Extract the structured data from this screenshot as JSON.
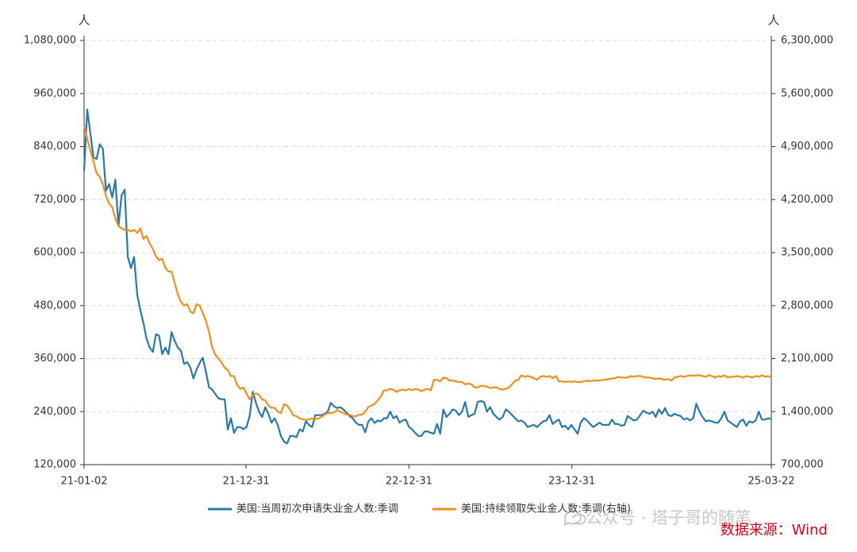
{
  "chart_data": {
    "type": "line",
    "y_unit": "人",
    "y2_unit": "人",
    "x": [
      "21-01-02",
      "21-01-09",
      "21-01-16",
      "21-01-23",
      "21-01-30",
      "21-02-06",
      "21-02-13",
      "21-02-20",
      "21-02-27",
      "21-03-06",
      "21-03-13",
      "21-03-20",
      "21-03-27",
      "21-04-03",
      "21-04-10",
      "21-04-17",
      "21-04-24",
      "21-05-01",
      "21-05-08",
      "21-05-15",
      "21-05-22",
      "21-05-29",
      "21-06-05",
      "21-06-12",
      "21-06-19",
      "21-06-26",
      "21-07-03",
      "21-07-10",
      "21-07-17",
      "21-07-24",
      "21-07-31",
      "21-08-07",
      "21-08-14",
      "21-08-21",
      "21-08-28",
      "21-09-04",
      "21-09-11",
      "21-09-18",
      "21-09-25",
      "21-10-02",
      "21-10-09",
      "21-10-16",
      "21-10-23",
      "21-10-30",
      "21-11-06",
      "21-11-13",
      "21-11-20",
      "21-11-27",
      "21-12-04",
      "21-12-11",
      "21-12-18",
      "21-12-25",
      "22-01-01",
      "22-01-08",
      "22-01-15",
      "22-01-22",
      "22-01-29",
      "22-02-05",
      "22-02-12",
      "22-02-19",
      "22-02-26",
      "22-03-05",
      "22-03-12",
      "22-03-19",
      "22-03-26",
      "22-04-02",
      "22-04-09",
      "22-04-16",
      "22-04-23",
      "22-04-30",
      "22-05-07",
      "22-05-14",
      "22-05-21",
      "22-05-28",
      "22-06-04",
      "22-06-11",
      "22-06-18",
      "22-06-25",
      "22-07-02",
      "22-07-09",
      "22-07-16",
      "22-07-23",
      "22-07-30",
      "22-08-06",
      "22-08-13",
      "22-08-20",
      "22-08-27",
      "22-09-03",
      "22-09-10",
      "22-09-17",
      "22-09-24",
      "22-10-01",
      "22-10-08",
      "22-10-15",
      "22-10-22",
      "22-10-29",
      "22-11-05",
      "22-11-12",
      "22-11-19",
      "22-11-26",
      "22-12-03",
      "22-12-10",
      "22-12-17",
      "22-12-24",
      "22-12-31",
      "23-01-07",
      "23-01-14",
      "23-01-21",
      "23-01-28",
      "23-02-04",
      "23-02-11",
      "23-02-18",
      "23-02-25",
      "23-03-04",
      "23-03-11",
      "23-03-18",
      "23-03-25",
      "23-04-01",
      "23-04-08",
      "23-04-15",
      "23-04-22",
      "23-04-29",
      "23-05-06",
      "23-05-13",
      "23-05-20",
      "23-05-27",
      "23-06-03",
      "23-06-10",
      "23-06-17",
      "23-06-24",
      "23-07-01",
      "23-07-08",
      "23-07-15",
      "23-07-22",
      "23-07-29",
      "23-08-05",
      "23-08-12",
      "23-08-19",
      "23-08-26",
      "23-09-02",
      "23-09-09",
      "23-09-16",
      "23-09-23",
      "23-09-30",
      "23-10-07",
      "23-10-14",
      "23-10-21",
      "23-10-28",
      "23-11-04",
      "23-11-11",
      "23-11-18",
      "23-11-25",
      "23-12-02",
      "23-12-09",
      "23-12-16",
      "23-12-23",
      "23-12-30",
      "24-01-06",
      "24-01-13",
      "24-01-20",
      "24-01-27",
      "24-02-03",
      "24-02-10",
      "24-02-17",
      "24-02-24",
      "24-03-02",
      "24-03-09",
      "24-03-16",
      "24-03-23",
      "24-03-30",
      "24-04-06",
      "24-04-13",
      "24-04-20",
      "24-04-27",
      "24-05-04",
      "24-05-11",
      "24-05-18",
      "24-05-25",
      "24-06-01",
      "24-06-08",
      "24-06-15",
      "24-06-22",
      "24-06-29",
      "24-07-06",
      "24-07-13",
      "24-07-20",
      "24-07-27",
      "24-08-03",
      "24-08-10",
      "24-08-17",
      "24-08-24",
      "24-08-31",
      "24-09-07",
      "24-09-14",
      "24-09-21",
      "24-09-28",
      "24-10-05",
      "24-10-12",
      "24-10-19",
      "24-10-26",
      "24-11-02",
      "24-11-09",
      "24-11-16",
      "24-11-23",
      "24-11-30",
      "24-12-07",
      "24-12-14",
      "24-12-21",
      "24-12-28",
      "25-01-04",
      "25-01-11",
      "25-01-18",
      "25-01-25",
      "25-02-01",
      "25-02-08",
      "25-02-15",
      "25-02-22",
      "25-03-01",
      "25-03-08",
      "25-03-15",
      "25-03-22"
    ],
    "series": [
      {
        "name": "美国:当周初次申请失业金人数:季调",
        "color": "#2878a8",
        "values": [
          785000,
          924000,
          870000,
          815000,
          812000,
          845000,
          835000,
          740000,
          755000,
          725000,
          765000,
          660000,
          730000,
          742000,
          590000,
          565000,
          590000,
          505000,
          470000,
          440000,
          405000,
          385000,
          375000,
          415000,
          412000,
          370000,
          385000,
          370000,
          420000,
          400000,
          385000,
          378000,
          348000,
          352000,
          340000,
          315000,
          335000,
          350000,
          362000,
          330000,
          295000,
          290000,
          280000,
          270000,
          268000,
          268000,
          199000,
          225000,
          192000,
          205000,
          205000,
          200000,
          205000,
          230000,
          285000,
          260000,
          240000,
          228000,
          250000,
          235000,
          215000,
          225000,
          210000,
          185000,
          172000,
          168000,
          185000,
          185000,
          182000,
          200000,
          195000,
          218000,
          210000,
          205000,
          232000,
          232000,
          232000,
          235000,
          240000,
          260000,
          252000,
          248000,
          250000,
          245000,
          238000,
          230000,
          225000,
          215000,
          210000,
          210000,
          193000,
          218000,
          225000,
          214000,
          220000,
          218000,
          225000,
          225000,
          240000,
          225000,
          230000,
          215000,
          220000,
          222000,
          205000,
          200000,
          192000,
          185000,
          185000,
          195000,
          195000,
          192000,
          190000,
          212000,
          190000,
          245000,
          228000,
          235000,
          245000,
          242000,
          232000,
          240000,
          262000,
          228000,
          232000,
          235000,
          262000,
          264000,
          262000,
          240000,
          250000,
          235000,
          228000,
          222000,
          228000,
          245000,
          240000,
          232000,
          225000,
          218000,
          220000,
          215000,
          205000,
          208000,
          210000,
          205000,
          212000,
          218000,
          220000,
          232000,
          212000,
          218000,
          222000,
          205000,
          208000,
          200000,
          210000,
          200000,
          190000,
          215000,
          225000,
          220000,
          212000,
          205000,
          210000,
          215000,
          210000,
          210000,
          210000,
          222000,
          212000,
          212000,
          208000,
          210000,
          230000,
          225000,
          220000,
          222000,
          232000,
          242000,
          238000,
          235000,
          240000,
          228000,
          245000,
          235000,
          248000,
          232000,
          230000,
          235000,
          232000,
          230000,
          222000,
          225000,
          220000,
          225000,
          258000,
          240000,
          228000,
          218000,
          220000,
          218000,
          215000,
          215000,
          225000,
          240000,
          220000,
          215000,
          210000,
          205000,
          218000,
          222000,
          208000,
          218000,
          215000,
          220000,
          240000,
          222000,
          222000,
          225000,
          223000
        ]
      },
      {
        "name": "美国:持续领取失业金人数:季调(右轴)",
        "color": "#f28e1e",
        "axis": "y2",
        "values": [
          5180000,
          5000000,
          4850000,
          4700000,
          4550000,
          4500000,
          4400000,
          4250000,
          4150000,
          4100000,
          3950000,
          3850000,
          3820000,
          3800000,
          3800000,
          3780000,
          3800000,
          3760000,
          3820000,
          3680000,
          3720000,
          3620000,
          3550000,
          3450000,
          3400000,
          3420000,
          3300000,
          3250000,
          3250000,
          3100000,
          2950000,
          2850000,
          2800000,
          2820000,
          2720000,
          2700000,
          2820000,
          2800000,
          2700000,
          2600000,
          2450000,
          2250000,
          2150000,
          2100000,
          2050000,
          1980000,
          1950000,
          1870000,
          1870000,
          1750000,
          1700000,
          1720000,
          1640000,
          1560000,
          1620000,
          1640000,
          1620000,
          1560000,
          1550000,
          1480000,
          1450000,
          1450000,
          1400000,
          1380000,
          1500000,
          1480000,
          1420000,
          1350000,
          1340000,
          1310000,
          1300000,
          1290000,
          1300000,
          1310000,
          1300000,
          1310000,
          1330000,
          1360000,
          1380000,
          1380000,
          1390000,
          1420000,
          1400000,
          1380000,
          1360000,
          1360000,
          1340000,
          1340000,
          1360000,
          1360000,
          1400000,
          1460000,
          1480000,
          1500000,
          1550000,
          1600000,
          1680000,
          1680000,
          1700000,
          1690000,
          1660000,
          1680000,
          1690000,
          1680000,
          1700000,
          1680000,
          1700000,
          1690000,
          1670000,
          1690000,
          1700000,
          1680000,
          1820000,
          1820000,
          1800000,
          1850000,
          1840000,
          1810000,
          1810000,
          1800000,
          1790000,
          1790000,
          1760000,
          1770000,
          1760000,
          1720000,
          1720000,
          1740000,
          1740000,
          1730000,
          1710000,
          1720000,
          1720000,
          1700000,
          1690000,
          1700000,
          1720000,
          1760000,
          1810000,
          1820000,
          1880000,
          1860000,
          1870000,
          1860000,
          1840000,
          1820000,
          1860000,
          1870000,
          1860000,
          1870000,
          1840000,
          1870000,
          1800000,
          1800000,
          1790000,
          1800000,
          1790000,
          1800000,
          1790000,
          1790000,
          1800000,
          1810000,
          1800000,
          1810000,
          1810000,
          1810000,
          1820000,
          1820000,
          1830000,
          1840000,
          1840000,
          1860000,
          1850000,
          1850000,
          1850000,
          1870000,
          1860000,
          1870000,
          1870000,
          1860000,
          1850000,
          1850000,
          1840000,
          1830000,
          1840000,
          1830000,
          1820000,
          1830000,
          1810000,
          1850000,
          1860000,
          1870000,
          1860000,
          1870000,
          1880000,
          1870000,
          1880000,
          1880000,
          1870000,
          1860000,
          1880000,
          1870000,
          1850000,
          1870000,
          1860000,
          1880000,
          1850000,
          1860000,
          1860000,
          1870000,
          1860000,
          1850000,
          1870000,
          1860000,
          1850000,
          1870000,
          1860000,
          1880000,
          1860000,
          1870000,
          1850000
        ]
      }
    ],
    "xlim": [
      "21-01-02",
      "25-03-22"
    ],
    "xticks": [
      "21-01-02",
      "21-12-31",
      "22-12-31",
      "23-12-31",
      "25-03-22"
    ],
    "ylim": [
      120000,
      1080000
    ],
    "yticks": [
      {
        "value": 120000,
        "label": "120,000"
      },
      {
        "value": 240000,
        "label": "240,000"
      },
      {
        "value": 360000,
        "label": "360,000"
      },
      {
        "value": 480000,
        "label": "480,000"
      },
      {
        "value": 600000,
        "label": "600,000"
      },
      {
        "value": 720000,
        "label": "720,000"
      },
      {
        "value": 840000,
        "label": "840,000"
      },
      {
        "value": 960000,
        "label": "960,000"
      },
      {
        "value": 1080000,
        "label": "1,080,000"
      }
    ],
    "y2lim": [
      700000,
      6300000
    ],
    "y2ticks": [
      {
        "value": 700000,
        "label": "700,000"
      },
      {
        "value": 1400000,
        "label": "1,400,000"
      },
      {
        "value": 2100000,
        "label": "2,100,000"
      },
      {
        "value": 2800000,
        "label": "2,800,000"
      },
      {
        "value": 3500000,
        "label": "3,500,000"
      },
      {
        "value": 4200000,
        "label": "4,200,000"
      },
      {
        "value": 4900000,
        "label": "4,900,000"
      },
      {
        "value": 5600000,
        "label": "5,600,000"
      },
      {
        "value": 6300000,
        "label": "6,300,000"
      }
    ],
    "grid": true,
    "watermark": "公众号 · 塔子哥的随笔",
    "source": "数据来源：Wind"
  }
}
